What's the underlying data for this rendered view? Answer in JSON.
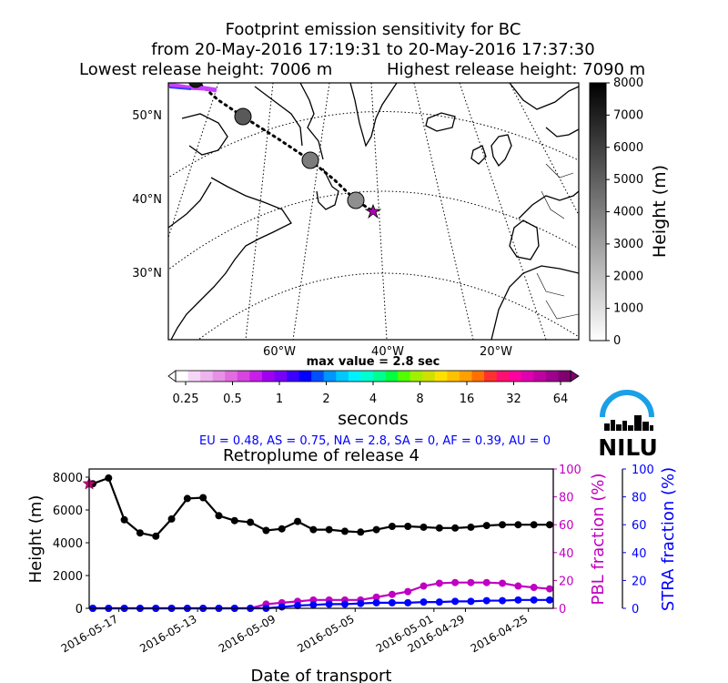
{
  "header": {
    "title_line1": "Footprint emission sensitivity for BC",
    "title_line2": "from 20-May-2016 17:19:31 to 20-May-2016 17:37:30",
    "lowest_release": "Lowest release height: 7006 m",
    "highest_release": "Highest release height: 7090 m"
  },
  "map": {
    "lat_labels": [
      "50°N",
      "40°N",
      "30°N"
    ],
    "lon_labels": [
      "60°W",
      "40°W",
      "20°W"
    ],
    "trajectory_heights_m": [
      7200,
      5200,
      4100,
      3500
    ],
    "release_marker": "star",
    "release_color": "#b000b0"
  },
  "height_colorbar": {
    "label": "Height (m)",
    "ticks": [
      "0",
      "1000",
      "2000",
      "3000",
      "4000",
      "5000",
      "6000",
      "7000",
      "8000"
    ]
  },
  "sensitivity_colorbar": {
    "max_value_label": "max value = 2.8 sec",
    "ticks": [
      "0.25",
      "0.5",
      "1",
      "2",
      "4",
      "8",
      "16",
      "32",
      "64"
    ],
    "unit_label": "seconds",
    "colors": [
      "#ffffff",
      "#f6d6f6",
      "#eeb4ee",
      "#e890e8",
      "#e06ce0",
      "#d744e0",
      "#c81ee8",
      "#a000f0",
      "#7800f8",
      "#3c00ff",
      "#0000ff",
      "#0050ff",
      "#0096ff",
      "#00c8ff",
      "#00f0ff",
      "#00ffd0",
      "#00ff90",
      "#00ff40",
      "#50ff00",
      "#a0f000",
      "#d0e000",
      "#ffe000",
      "#ffc000",
      "#ffa000",
      "#ff7000",
      "#ff3030",
      "#ff1070",
      "#ff00a0",
      "#e000b0",
      "#c000a0",
      "#a00090",
      "#800070"
    ]
  },
  "region_fractions": "EU = 0.48,  AS = 0.75,  NA = 2.8,  SA = 0,  AF = 0.39,  AU = 0",
  "logo_text": "NILU",
  "chart_data": {
    "type": "line",
    "title": "Retroplume of release 4",
    "xlabel": "Date of transport",
    "ylabel": "Height (m)",
    "ylabel_right1": "PBL fraction (%)",
    "ylabel_right2": "STRA fraction (%)",
    "x_ticks": [
      "2016-05-17",
      "2016-05-13",
      "2016-05-09",
      "2016-05-05",
      "2016-05-01",
      "2016-04-29",
      "2016-04-25"
    ],
    "ylim": [
      0,
      8500
    ],
    "y_ticks": [
      "0",
      "2000",
      "4000",
      "6000",
      "8000"
    ],
    "y2lim": [
      0,
      100
    ],
    "y2_ticks": [
      "0",
      "20",
      "40",
      "60",
      "80",
      "100"
    ],
    "y3_ticks": [
      "0",
      "20",
      "40",
      "60",
      "80",
      "100"
    ],
    "colors": {
      "height": "#000000",
      "pbl": "#c000c0",
      "stra": "#0000ff"
    },
    "series": [
      {
        "name": "Height",
        "axis": "left",
        "values": [
          7600,
          7950,
          5400,
          4600,
          4400,
          5450,
          6700,
          6750,
          5650,
          5350,
          5250,
          4750,
          4850,
          5300,
          4800,
          4800,
          4700,
          4650,
          4800,
          5000,
          5000,
          4950,
          4900,
          4900,
          4950,
          5050,
          5100,
          5100,
          5100,
          5100
        ]
      },
      {
        "name": "PBL",
        "axis": "right",
        "values": [
          0,
          0,
          0,
          0,
          0,
          0,
          0,
          0,
          0,
          0,
          0,
          3,
          4,
          5,
          6,
          6,
          6,
          6,
          8,
          10,
          12,
          16,
          18,
          18.5,
          18.5,
          18.5,
          18,
          16,
          15,
          14
        ]
      },
      {
        "name": "STRA",
        "axis": "right",
        "values": [
          0,
          0,
          0,
          0,
          0,
          0,
          0,
          0,
          0,
          0,
          0,
          0,
          1,
          2,
          2.5,
          3,
          3,
          3.5,
          4,
          4,
          4,
          4.5,
          4.5,
          5,
          5,
          5.5,
          5.5,
          6,
          6,
          6
        ]
      }
    ],
    "release_marker_height": 7600
  }
}
